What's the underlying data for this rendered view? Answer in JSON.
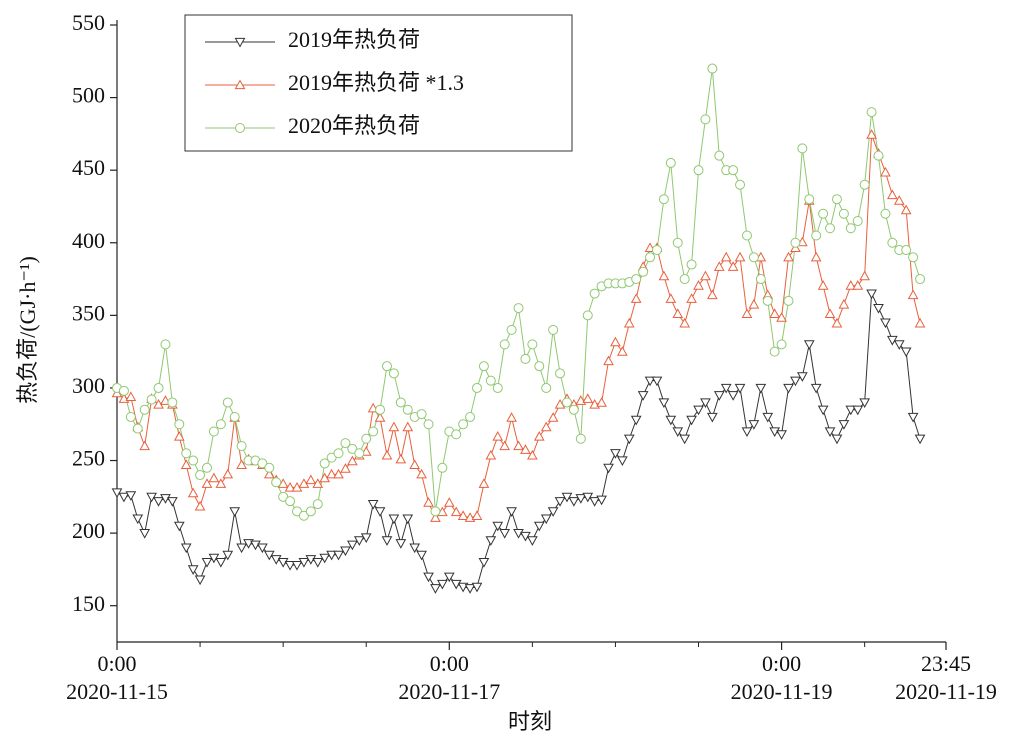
{
  "chart_data": {
    "type": "line",
    "xlabel": "时刻",
    "ylabel": "热负荷/(GJ·h⁻¹)",
    "xlim": [
      0,
      119.75
    ],
    "ylim": [
      125,
      550
    ],
    "xticks": [
      {
        "value": 0,
        "label": "0:00",
        "date": "2020-11-15"
      },
      {
        "value": 48,
        "label": "0:00",
        "date": "2020-11-17"
      },
      {
        "value": 96,
        "label": "0:00",
        "date": "2020-11-19"
      },
      {
        "value": 119.75,
        "label": "23:45",
        "date": "2020-11-19"
      }
    ],
    "xticks_minor": [
      12,
      24,
      36,
      60,
      72,
      84,
      108
    ],
    "yticks": [
      150,
      200,
      250,
      300,
      350,
      400,
      450,
      500,
      550
    ],
    "legend": "upper left",
    "x": [
      0,
      1,
      2,
      3,
      4,
      5,
      6,
      7,
      8,
      9,
      10,
      11,
      12,
      13,
      14,
      15,
      16,
      17,
      18,
      19,
      20,
      21,
      22,
      23,
      24,
      25,
      26,
      27,
      28,
      29,
      30,
      31,
      32,
      33,
      34,
      35,
      36,
      37,
      38,
      39,
      40,
      41,
      42,
      43,
      44,
      45,
      46,
      47,
      48,
      49,
      50,
      51,
      52,
      53,
      54,
      55,
      56,
      57,
      58,
      59,
      60,
      61,
      62,
      63,
      64,
      65,
      66,
      67,
      68,
      69,
      70,
      71,
      72,
      73,
      74,
      75,
      76,
      77,
      78,
      79,
      80,
      81,
      82,
      83,
      84,
      85,
      86,
      87,
      88,
      89,
      90,
      91,
      92,
      93,
      94,
      95,
      96,
      97,
      98,
      99,
      100,
      101,
      102,
      103,
      104,
      105,
      106,
      107,
      108,
      109,
      110,
      111,
      112,
      113,
      114,
      115,
      116
    ],
    "series": [
      {
        "name": "2019年热负荷",
        "color": "#333333",
        "marker": "triangle-down",
        "values": [
          228,
          225,
          226,
          210,
          200,
          225,
          222,
          224,
          222,
          205,
          190,
          175,
          168,
          180,
          183,
          180,
          185,
          215,
          190,
          193,
          192,
          190,
          185,
          182,
          180,
          178,
          178,
          180,
          182,
          180,
          183,
          185,
          185,
          188,
          192,
          195,
          197,
          220,
          215,
          195,
          210,
          193,
          210,
          190,
          185,
          170,
          162,
          165,
          170,
          165,
          163,
          162,
          163,
          180,
          195,
          205,
          200,
          215,
          200,
          198,
          195,
          205,
          210,
          215,
          222,
          225,
          222,
          224,
          225,
          222,
          223,
          245,
          255,
          250,
          265,
          278,
          295,
          305,
          305,
          290,
          278,
          270,
          265,
          278,
          285,
          290,
          280,
          295,
          300,
          295,
          300,
          270,
          275,
          300,
          280,
          270,
          268,
          300,
          305,
          308,
          330,
          300,
          285,
          270,
          265,
          275,
          285,
          285,
          290,
          365,
          355,
          345,
          333,
          330,
          325,
          280,
          265
        ]
      },
      {
        "name": "2019年热负荷 *1.3",
        "color": "#e8603c",
        "marker": "triangle-up",
        "values": [
          296.4,
          292.5,
          293.8,
          273,
          260,
          292.5,
          288.6,
          291.2,
          288.6,
          266.5,
          247,
          227.5,
          218.4,
          234,
          237.9,
          234,
          240.5,
          279.5,
          247,
          250.9,
          249.6,
          247,
          240.5,
          236.6,
          234,
          231.4,
          231.4,
          234,
          236.6,
          234,
          237.9,
          240.5,
          240.5,
          244.4,
          249.6,
          253.5,
          256.1,
          286,
          279.5,
          253.5,
          273,
          250.9,
          273,
          247,
          240.5,
          221,
          210.6,
          214.5,
          221,
          214.5,
          211.9,
          210.6,
          211.9,
          234,
          253.5,
          266.5,
          260,
          279.5,
          260,
          257.4,
          253.5,
          266.5,
          273,
          279.5,
          288.6,
          292.5,
          288.6,
          291.2,
          292.5,
          288.6,
          289.9,
          318.5,
          331.5,
          325,
          344.5,
          361.4,
          383.5,
          396.5,
          396.5,
          377,
          361.4,
          351,
          344.5,
          361.4,
          370.5,
          377,
          364,
          383.5,
          390,
          383.5,
          390,
          351,
          357.5,
          390,
          364,
          351,
          348.4,
          390,
          396.5,
          400.4,
          429,
          390,
          370.5,
          351,
          344.5,
          357.5,
          370.5,
          370.5,
          377,
          474.5,
          461.5,
          448.5,
          432.9,
          429,
          422.5,
          364,
          344.5
        ]
      },
      {
        "name": "2020年热负荷",
        "color": "#8fc870",
        "marker": "circle",
        "values": [
          300,
          298,
          280,
          272,
          285,
          292,
          300,
          330,
          290,
          275,
          255,
          250,
          240,
          245,
          270,
          275,
          290,
          280,
          260,
          250,
          250,
          248,
          245,
          235,
          225,
          222,
          215,
          212,
          215,
          220,
          248,
          252,
          255,
          262,
          258,
          255,
          265,
          270,
          285,
          315,
          310,
          290,
          285,
          280,
          282,
          275,
          215,
          245,
          270,
          268,
          275,
          280,
          300,
          315,
          305,
          300,
          330,
          340,
          355,
          320,
          330,
          315,
          300,
          340,
          310,
          290,
          285,
          265,
          350,
          365,
          370,
          372,
          372,
          372,
          373,
          375,
          380,
          390,
          395,
          430,
          455,
          400,
          375,
          385,
          450,
          485,
          520,
          460,
          450,
          450,
          440,
          405,
          390,
          375,
          360,
          325,
          330,
          360,
          400,
          465,
          430,
          405,
          420,
          410,
          430,
          420,
          410,
          415,
          440,
          490,
          460,
          420,
          400,
          395,
          395,
          390,
          375
        ]
      }
    ]
  }
}
